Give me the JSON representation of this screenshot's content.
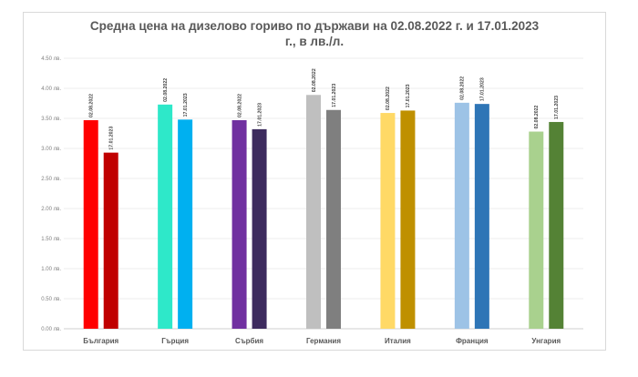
{
  "chart_data": {
    "type": "bar",
    "title_line1": "Средна цена на дизелово гориво по държави на 02.08.2022 г. и 17.01.2023",
    "title_line2": "г., в лв./л.",
    "categories": [
      "България",
      "Гърция",
      "Сърбия",
      "Германия",
      "Италия",
      "Франция",
      "Унгария"
    ],
    "series": [
      {
        "name": "02.08.2022",
        "values": [
          3.47,
          3.73,
          3.47,
          3.89,
          3.59,
          3.76,
          3.28
        ]
      },
      {
        "name": "17.01.2023",
        "values": [
          2.93,
          3.48,
          3.32,
          3.64,
          3.63,
          3.74,
          3.44
        ]
      }
    ],
    "bar_colors": [
      [
        "#ff0000",
        "#c00000"
      ],
      [
        "#2ee8c9",
        "#00b0f0"
      ],
      [
        "#7030a0",
        "#3d2b5e"
      ],
      [
        "#bfbfbf",
        "#7f7f7f"
      ],
      [
        "#ffd966",
        "#bf9000"
      ],
      [
        "#9dc3e6",
        "#2e75b6"
      ],
      [
        "#a9d18e",
        "#548235"
      ]
    ],
    "y_ticks": [
      "0.00 лв.",
      "0.50 лв.",
      "1.00 лв.",
      "1.50 лв.",
      "2.00 лв.",
      "2.50 лв.",
      "3.00 лв.",
      "3.50 лв.",
      "4.00 лв.",
      "4.50 лв."
    ],
    "ylim": [
      0,
      4.5
    ],
    "grid": true,
    "legend": "none"
  }
}
